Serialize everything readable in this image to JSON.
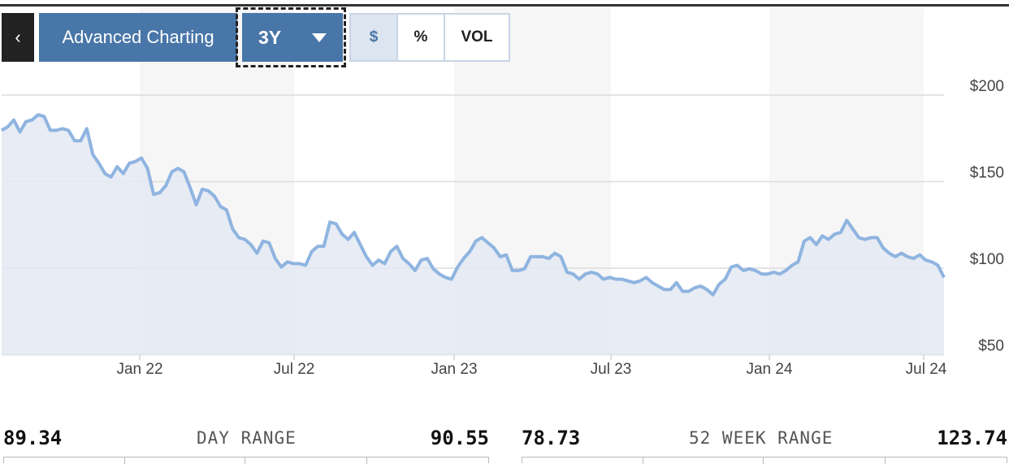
{
  "toolbar": {
    "back_label": "‹",
    "advanced_label": "Advanced Charting",
    "period_label": "3Y",
    "toggles": [
      "$",
      "%",
      "VOL"
    ]
  },
  "colors": {
    "accent": "#4876a8",
    "line": "#8fb4e0",
    "fill": "#e3e9f3"
  },
  "chart_data": {
    "type": "area",
    "y_ticks": [
      "$200",
      "$150",
      "$100",
      "$50"
    ],
    "x_ticks": [
      "Jan 22",
      "Jul 22",
      "Jan 23",
      "Jul 23",
      "Jan 24",
      "Jul 24"
    ],
    "ylim": [
      50,
      200
    ],
    "grid": true,
    "series": [
      {
        "values": [
          174,
          176,
          180,
          173,
          179,
          180,
          183,
          182,
          174,
          174,
          175,
          174,
          168,
          168,
          175,
          160,
          155,
          149,
          147,
          153,
          149,
          155,
          156,
          158,
          152,
          137,
          138,
          142,
          150,
          152,
          150,
          141,
          131,
          140,
          139,
          136,
          130,
          128,
          117,
          112,
          111,
          108,
          103,
          110,
          109,
          100,
          95,
          98,
          97,
          97,
          96,
          104,
          107,
          107,
          121,
          120,
          114,
          111,
          115,
          108,
          101,
          96,
          99,
          97,
          104,
          107,
          100,
          97,
          93,
          99,
          100,
          94,
          91,
          89,
          88,
          95,
          100,
          104,
          110,
          112,
          109,
          106,
          101,
          102,
          93,
          93,
          94,
          101,
          101,
          101,
          100,
          103,
          101,
          92,
          91,
          88,
          91,
          92,
          91,
          88,
          89,
          88,
          88,
          87,
          86,
          87,
          89,
          86,
          84,
          82,
          82,
          86,
          81,
          81,
          83,
          84,
          82,
          79,
          85,
          88,
          95,
          96,
          93,
          94,
          93,
          91,
          91,
          92,
          91,
          93,
          96,
          98,
          110,
          112,
          108,
          113,
          111,
          114,
          115,
          122,
          117,
          112,
          111,
          112,
          112,
          106,
          103,
          101,
          103,
          101,
          100,
          102,
          99,
          98,
          96,
          89
        ]
      }
    ]
  },
  "ranges": {
    "day": {
      "low": "89.34",
      "label": "DAY RANGE",
      "high": "90.55"
    },
    "week52": {
      "low": "78.73",
      "label": "52 WEEK RANGE",
      "high": "123.74"
    }
  }
}
